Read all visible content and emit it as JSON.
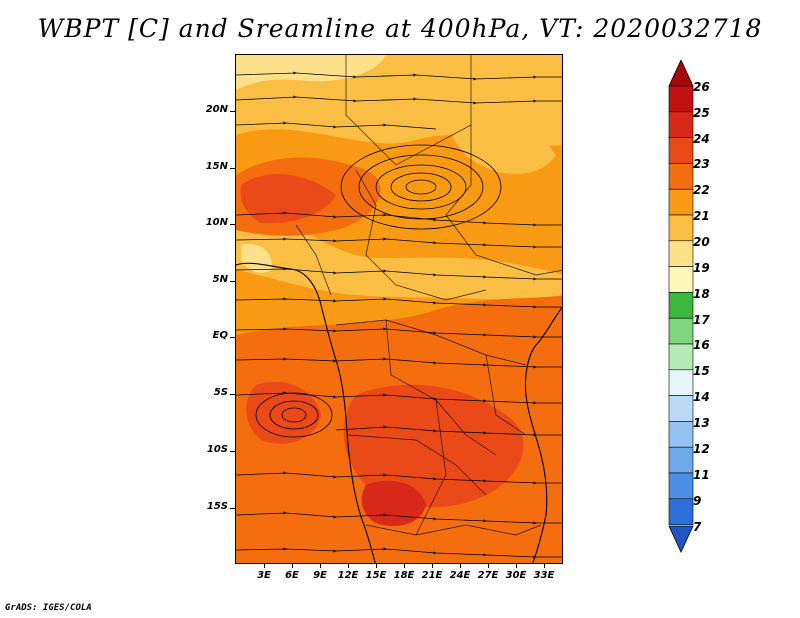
{
  "title": "WBPT [C] and Sreamline at 400hPa, VT: 2020032718",
  "footer": "GrADS: IGES/COLA",
  "map": {
    "lat_labels": [
      "20N",
      "15N",
      "10N",
      "5N",
      "EQ",
      "5S",
      "10S",
      "15S"
    ],
    "lon_labels": [
      "3E",
      "6E",
      "9E",
      "12E",
      "15E",
      "18E",
      "21E",
      "24E",
      "27E",
      "30E",
      "33E"
    ],
    "field": "wet-bulb potential temperature",
    "overlay": "streamlines"
  },
  "colorbar": {
    "labels": [
      "26",
      "25",
      "24",
      "23",
      "22",
      "21",
      "20",
      "19",
      "18",
      "17",
      "16",
      "15",
      "14",
      "13",
      "12",
      "11",
      "9",
      "7"
    ],
    "colors": [
      "#a50a0a",
      "#c01010",
      "#d8281a",
      "#ea4a18",
      "#f46e10",
      "#f89a14",
      "#fbbe44",
      "#fde08a",
      "#fdf7b8",
      "#3cb83c",
      "#7ed67e",
      "#b4ebb4",
      "#e6f5fa",
      "#bcdaf7",
      "#96c3f3",
      "#6ea9ec",
      "#4a8fe4",
      "#2d6fd8",
      "#1f56c4"
    ]
  }
}
